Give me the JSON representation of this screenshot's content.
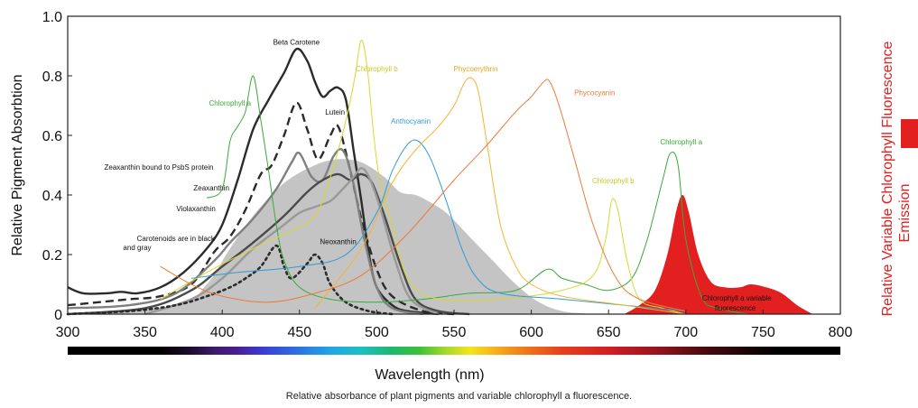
{
  "caption": "Relative absorbance of plant pigments and variable chlorophyll a fluorescence.",
  "chart_data": {
    "type": "line",
    "xlabel": "Wavelength (nm)",
    "ylabel": "Relative Pigment Absorbtion",
    "y2label_line1": "Relative Variable Chlorophyll Fluorescence",
    "y2label_line2": "Emission",
    "xlim": [
      300,
      800
    ],
    "ylim": [
      0,
      1.0
    ],
    "x_ticks": [
      "300",
      "350",
      "400",
      "450",
      "500",
      "550",
      "600",
      "650",
      "700",
      "750",
      "800"
    ],
    "y_ticks": [
      "0",
      "0.2",
      "0.4",
      "0.6",
      "0.8",
      "1.0"
    ],
    "grid": false,
    "colors": {
      "carotenoid": "#2b2b2b",
      "neoxanthin_fill": "#c2c2c2",
      "chlorophyll_a": "#3aaa3a",
      "chlorophyll_b": "#d8d830",
      "anthocyanin": "#2f9bd6",
      "phycoerythrin": "#f2b530",
      "phycocyanin": "#ee7a38",
      "fluorescence": "#e32020"
    },
    "series": [
      {
        "name": "Beta Carotene",
        "style": "solid",
        "color": "#2b2b2b",
        "points": [
          [
            300,
            0.09
          ],
          [
            310,
            0.07
          ],
          [
            325,
            0.07
          ],
          [
            335,
            0.075
          ],
          [
            345,
            0.07
          ],
          [
            360,
            0.09
          ],
          [
            375,
            0.14
          ],
          [
            390,
            0.22
          ],
          [
            400,
            0.3
          ],
          [
            410,
            0.45
          ],
          [
            420,
            0.62
          ],
          [
            430,
            0.72
          ],
          [
            440,
            0.81
          ],
          [
            448,
            0.89
          ],
          [
            455,
            0.85
          ],
          [
            460,
            0.78
          ],
          [
            465,
            0.73
          ],
          [
            470,
            0.75
          ],
          [
            475,
            0.76
          ],
          [
            480,
            0.72
          ],
          [
            485,
            0.55
          ],
          [
            490,
            0.38
          ],
          [
            495,
            0.2
          ],
          [
            500,
            0.09
          ],
          [
            510,
            0.03
          ],
          [
            520,
            0.01
          ],
          [
            540,
            0.0
          ]
        ]
      },
      {
        "name": "Zeaxanthin bound to PsbS protein",
        "style": "dashed",
        "color": "#2b2b2b",
        "points": [
          [
            300,
            0.03
          ],
          [
            320,
            0.04
          ],
          [
            340,
            0.05
          ],
          [
            360,
            0.06
          ],
          [
            380,
            0.1
          ],
          [
            395,
            0.21
          ],
          [
            405,
            0.26
          ],
          [
            415,
            0.35
          ],
          [
            425,
            0.47
          ],
          [
            432,
            0.5
          ],
          [
            440,
            0.6
          ],
          [
            448,
            0.71
          ],
          [
            455,
            0.62
          ],
          [
            462,
            0.52
          ],
          [
            470,
            0.6
          ],
          [
            475,
            0.63
          ],
          [
            482,
            0.5
          ],
          [
            490,
            0.32
          ],
          [
            500,
            0.15
          ],
          [
            510,
            0.06
          ],
          [
            530,
            0.01
          ],
          [
            550,
            0.0
          ]
        ]
      },
      {
        "name": "Lutein",
        "style": "solid",
        "color": "#808080",
        "points": [
          [
            300,
            0.02
          ],
          [
            340,
            0.03
          ],
          [
            370,
            0.07
          ],
          [
            395,
            0.18
          ],
          [
            405,
            0.24
          ],
          [
            420,
            0.32
          ],
          [
            435,
            0.42
          ],
          [
            445,
            0.51
          ],
          [
            450,
            0.54
          ],
          [
            458,
            0.46
          ],
          [
            465,
            0.45
          ],
          [
            472,
            0.53
          ],
          [
            478,
            0.55
          ],
          [
            484,
            0.46
          ],
          [
            492,
            0.25
          ],
          [
            500,
            0.09
          ],
          [
            510,
            0.02
          ],
          [
            530,
            0.0
          ]
        ]
      },
      {
        "name": "Zeaxanthin",
        "style": "solid",
        "color": "#4a4a4a",
        "points": [
          [
            300,
            0.0
          ],
          [
            350,
            0.02
          ],
          [
            380,
            0.08
          ],
          [
            400,
            0.16
          ],
          [
            420,
            0.24
          ],
          [
            440,
            0.33
          ],
          [
            455,
            0.41
          ],
          [
            465,
            0.45
          ],
          [
            475,
            0.47
          ],
          [
            483,
            0.45
          ],
          [
            490,
            0.47
          ],
          [
            497,
            0.44
          ],
          [
            505,
            0.33
          ],
          [
            515,
            0.17
          ],
          [
            525,
            0.05
          ],
          [
            540,
            0.01
          ],
          [
            560,
            0.0
          ]
        ]
      },
      {
        "name": "Violaxanthin",
        "style": "solid",
        "color": "#999999",
        "points": [
          [
            350,
            0.0
          ],
          [
            380,
            0.05
          ],
          [
            400,
            0.12
          ],
          [
            420,
            0.22
          ],
          [
            440,
            0.3
          ],
          [
            450,
            0.34
          ],
          [
            460,
            0.36
          ],
          [
            470,
            0.38
          ],
          [
            478,
            0.42
          ],
          [
            485,
            0.46
          ],
          [
            490,
            0.49
          ],
          [
            495,
            0.46
          ],
          [
            502,
            0.36
          ],
          [
            512,
            0.18
          ],
          [
            522,
            0.05
          ],
          [
            540,
            0.0
          ]
        ]
      },
      {
        "name": "Neoxanthin",
        "style": "dotted",
        "color": "#2b2b2b",
        "points": [
          [
            300,
            0.0
          ],
          [
            340,
            0.01
          ],
          [
            370,
            0.03
          ],
          [
            390,
            0.06
          ],
          [
            405,
            0.09
          ],
          [
            415,
            0.12
          ],
          [
            425,
            0.16
          ],
          [
            435,
            0.23
          ],
          [
            440,
            0.16
          ],
          [
            445,
            0.12
          ],
          [
            455,
            0.17
          ],
          [
            460,
            0.2
          ],
          [
            465,
            0.17
          ],
          [
            470,
            0.1
          ],
          [
            480,
            0.04
          ],
          [
            495,
            0.01
          ],
          [
            510,
            0.0
          ]
        ]
      },
      {
        "name": "Chlorophyll a",
        "style": "solid",
        "color": "#3aaa3a",
        "points": [
          [
            390,
            0.39
          ],
          [
            400,
            0.42
          ],
          [
            405,
            0.58
          ],
          [
            410,
            0.63
          ],
          [
            415,
            0.68
          ],
          [
            420,
            0.8
          ],
          [
            425,
            0.65
          ],
          [
            430,
            0.48
          ],
          [
            435,
            0.3
          ],
          [
            440,
            0.18
          ],
          [
            450,
            0.09
          ],
          [
            470,
            0.05
          ],
          [
            500,
            0.04
          ],
          [
            530,
            0.05
          ],
          [
            560,
            0.07
          ],
          [
            590,
            0.08
          ],
          [
            610,
            0.15
          ],
          [
            620,
            0.12
          ],
          [
            635,
            0.1
          ],
          [
            650,
            0.08
          ],
          [
            665,
            0.12
          ],
          [
            675,
            0.25
          ],
          [
            685,
            0.45
          ],
          [
            690,
            0.54
          ],
          [
            695,
            0.5
          ],
          [
            700,
            0.25
          ],
          [
            710,
            0.06
          ],
          [
            720,
            0.02
          ],
          [
            740,
            0.0
          ]
        ]
      },
      {
        "name": "Chlorophyll b",
        "style": "solid",
        "color": "#d8d830",
        "points": [
          [
            360,
            0.05
          ],
          [
            390,
            0.14
          ],
          [
            420,
            0.22
          ],
          [
            445,
            0.28
          ],
          [
            460,
            0.33
          ],
          [
            470,
            0.46
          ],
          [
            480,
            0.65
          ],
          [
            486,
            0.8
          ],
          [
            490,
            0.92
          ],
          [
            494,
            0.82
          ],
          [
            498,
            0.6
          ],
          [
            502,
            0.45
          ],
          [
            510,
            0.3
          ],
          [
            520,
            0.12
          ],
          [
            540,
            0.05
          ],
          [
            580,
            0.05
          ],
          [
            620,
            0.08
          ],
          [
            640,
            0.13
          ],
          [
            648,
            0.25
          ],
          [
            652,
            0.38
          ],
          [
            656,
            0.35
          ],
          [
            662,
            0.18
          ],
          [
            670,
            0.05
          ],
          [
            685,
            0.02
          ],
          [
            700,
            0.0
          ]
        ]
      },
      {
        "name": "Anthocyanin",
        "style": "solid",
        "color": "#2f9bd6",
        "points": [
          [
            380,
            0.12
          ],
          [
            410,
            0.14
          ],
          [
            450,
            0.16
          ],
          [
            480,
            0.2
          ],
          [
            500,
            0.34
          ],
          [
            510,
            0.48
          ],
          [
            520,
            0.57
          ],
          [
            527,
            0.58
          ],
          [
            535,
            0.52
          ],
          [
            545,
            0.38
          ],
          [
            555,
            0.22
          ],
          [
            565,
            0.12
          ],
          [
            580,
            0.07
          ],
          [
            620,
            0.05
          ],
          [
            660,
            0.03
          ],
          [
            700,
            0.01
          ]
        ]
      },
      {
        "name": "Phycoerythrin",
        "style": "solid",
        "color": "#f2b530",
        "points": [
          [
            460,
            0.02
          ],
          [
            490,
            0.22
          ],
          [
            510,
            0.44
          ],
          [
            525,
            0.55
          ],
          [
            540,
            0.63
          ],
          [
            550,
            0.7
          ],
          [
            557,
            0.78
          ],
          [
            562,
            0.79
          ],
          [
            566,
            0.74
          ],
          [
            572,
            0.55
          ],
          [
            580,
            0.3
          ],
          [
            590,
            0.16
          ],
          [
            600,
            0.1
          ],
          [
            620,
            0.06
          ],
          [
            660,
            0.03
          ],
          [
            700,
            0.0
          ]
        ]
      },
      {
        "name": "Phycocyanin",
        "style": "solid",
        "color": "#ee7a38",
        "points": [
          [
            360,
            0.16
          ],
          [
            380,
            0.1
          ],
          [
            400,
            0.06
          ],
          [
            430,
            0.04
          ],
          [
            460,
            0.07
          ],
          [
            490,
            0.13
          ],
          [
            520,
            0.27
          ],
          [
            550,
            0.45
          ],
          [
            570,
            0.56
          ],
          [
            590,
            0.68
          ],
          [
            600,
            0.73
          ],
          [
            608,
            0.78
          ],
          [
            612,
            0.78
          ],
          [
            618,
            0.7
          ],
          [
            628,
            0.52
          ],
          [
            640,
            0.3
          ],
          [
            655,
            0.12
          ],
          [
            670,
            0.05
          ],
          [
            700,
            0.01
          ]
        ]
      }
    ],
    "neoxanthin_area": [
      [
        300,
        0.0
      ],
      [
        370,
        0.03
      ],
      [
        390,
        0.1
      ],
      [
        405,
        0.22
      ],
      [
        420,
        0.33
      ],
      [
        440,
        0.44
      ],
      [
        460,
        0.5
      ],
      [
        475,
        0.52
      ],
      [
        490,
        0.51
      ],
      [
        505,
        0.46
      ],
      [
        515,
        0.41
      ],
      [
        525,
        0.4
      ],
      [
        533,
        0.38
      ],
      [
        545,
        0.34
      ],
      [
        560,
        0.26
      ],
      [
        575,
        0.18
      ],
      [
        590,
        0.1
      ],
      [
        605,
        0.04
      ],
      [
        620,
        0.01
      ],
      [
        640,
        0.0
      ]
    ],
    "fluorescence_area": [
      [
        660,
        0.0
      ],
      [
        670,
        0.03
      ],
      [
        680,
        0.08
      ],
      [
        688,
        0.2
      ],
      [
        694,
        0.35
      ],
      [
        698,
        0.4
      ],
      [
        702,
        0.34
      ],
      [
        708,
        0.2
      ],
      [
        716,
        0.11
      ],
      [
        725,
        0.09
      ],
      [
        735,
        0.09
      ],
      [
        742,
        0.1
      ],
      [
        752,
        0.09
      ],
      [
        762,
        0.07
      ],
      [
        772,
        0.03
      ],
      [
        782,
        0.0
      ]
    ],
    "annotations": [
      {
        "text": "Beta Carotene",
        "x": 448,
        "y": 0.905,
        "color": "#111111",
        "anchor": "middle"
      },
      {
        "text": "Lutein",
        "x": 473,
        "y": 0.67,
        "color": "#111111",
        "anchor": "middle"
      },
      {
        "text": "Zeaxanthin bound to PsbS protein",
        "x": 359,
        "y": 0.485,
        "color": "#111111",
        "anchor": "middle"
      },
      {
        "text": "Zeaxanthin",
        "x": 393,
        "y": 0.415,
        "color": "#111111",
        "anchor": "middle"
      },
      {
        "text": "Violaxanthin",
        "x": 383,
        "y": 0.345,
        "color": "#111111",
        "anchor": "middle"
      },
      {
        "text": "Neoxanthin",
        "x": 475,
        "y": 0.235,
        "color": "#111111",
        "anchor": "middle"
      },
      {
        "text": "Carotenoids are in black",
        "x": 370,
        "y": 0.245,
        "color": "#111111",
        "anchor": "middle"
      },
      {
        "text": "and gray",
        "x": 345,
        "y": 0.215,
        "color": "#111111",
        "anchor": "middle"
      },
      {
        "text": "Chlorophyll a",
        "x": 405,
        "y": 0.7,
        "color": "#3aaa3a",
        "anchor": "middle"
      },
      {
        "text": "Chlorophyll b",
        "x": 500,
        "y": 0.815,
        "color": "#c9c922",
        "anchor": "middle"
      },
      {
        "text": "Phycoerythrin",
        "x": 564,
        "y": 0.815,
        "color": "#e8a420",
        "anchor": "middle"
      },
      {
        "text": "Anthocyanin",
        "x": 522,
        "y": 0.64,
        "color": "#2f9bd6",
        "anchor": "middle"
      },
      {
        "text": "Phycocyanin",
        "x": 641,
        "y": 0.735,
        "color": "#ee7a38",
        "anchor": "middle"
      },
      {
        "text": "Chlorophyll a",
        "x": 697,
        "y": 0.57,
        "color": "#3aaa3a",
        "anchor": "middle"
      },
      {
        "text": "Chlorophyll b",
        "x": 653,
        "y": 0.44,
        "color": "#c9c922",
        "anchor": "middle"
      },
      {
        "text": "Chlorophyll a variable",
        "x": 733,
        "y": 0.045,
        "color": "#111111",
        "anchor": "middle"
      },
      {
        "text": "fluorescence",
        "x": 732,
        "y": 0.012,
        "color": "#111111",
        "anchor": "middle"
      }
    ]
  }
}
